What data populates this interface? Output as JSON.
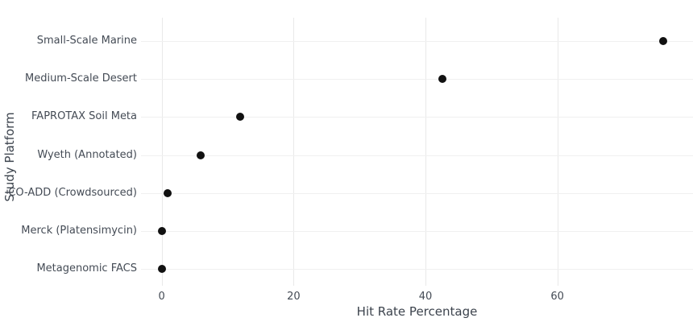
{
  "chart": {
    "background_color": "#ffffff",
    "dot_color": "#111111",
    "grid_color": "#ededed",
    "text_color": "#444b55"
  },
  "chart_data": {
    "type": "scatter",
    "variant": "horizontal-dot-plot",
    "title": "",
    "xlabel": "Hit Rate Percentage",
    "ylabel": "Study Platform",
    "categories": [
      "Small-Scale Marine",
      "Medium-Scale Desert",
      "FAPROTAX Soil Meta",
      "Wyeth (Annotated)",
      "CO-ADD (Crowdsourced)",
      "Merck (Platensimycin)",
      "Metagenomic FACS"
    ],
    "values": [
      76,
      42.6,
      11.9,
      5.9,
      0.9,
      0,
      0
    ],
    "xticks": [
      0,
      20,
      40,
      60
    ],
    "xlim": [
      -3.14,
      80.57
    ],
    "grid": true,
    "legend": false,
    "marker_size_px": 10
  }
}
